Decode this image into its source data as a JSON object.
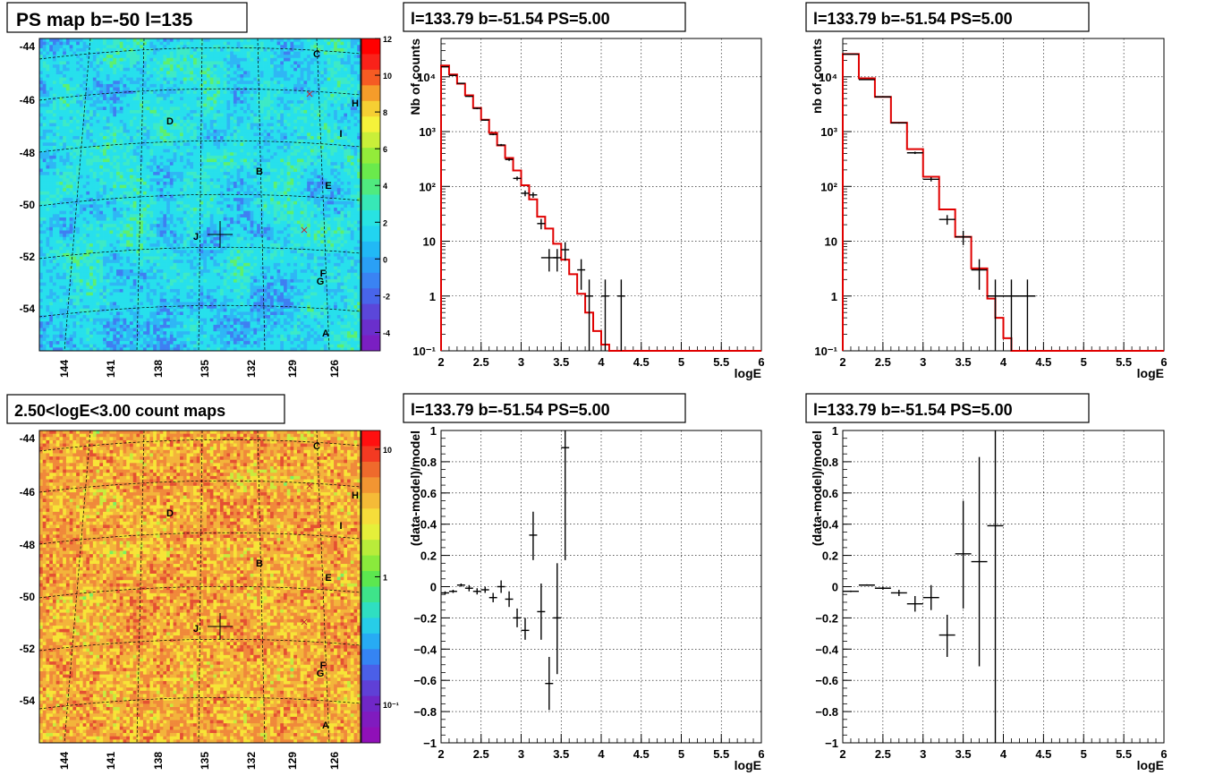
{
  "panels": {
    "map_top": {
      "title": "PS map b=-50 l=135",
      "colorbar": {
        "min": -5,
        "max": 12,
        "ticks": [
          "12",
          "10",
          "8",
          "6",
          "4",
          "2",
          "0",
          "-2",
          "-4"
        ],
        "tick_values": [
          12,
          10,
          8,
          6,
          4,
          2,
          0,
          -2,
          -4
        ],
        "scale": "linear"
      },
      "y_ticks": [
        "-44",
        "-46",
        "-48",
        "-50",
        "-52",
        "-54"
      ],
      "x_ticks": [
        "144",
        "141",
        "138",
        "135",
        "132",
        "129",
        "126"
      ],
      "sources": [
        "C",
        "H",
        "D",
        "I",
        "B",
        "E",
        "J",
        "F",
        "G",
        "A"
      ],
      "palette": "cyan-green"
    },
    "map_bottom": {
      "title": "2.50<logE<3.00 count maps",
      "colorbar": {
        "scale": "log",
        "ticks": [
          "10",
          "1",
          "10⁻¹"
        ],
        "tick_values": [
          10,
          1,
          0.1
        ],
        "min": 0.05,
        "max": 14
      },
      "y_ticks": [
        "-44",
        "-46",
        "-48",
        "-50",
        "-52",
        "-54"
      ],
      "x_ticks": [
        "144",
        "141",
        "138",
        "135",
        "132",
        "129",
        "126"
      ],
      "sources": [
        "C",
        "H",
        "D",
        "I",
        "B",
        "E",
        "J",
        "F",
        "G",
        "A"
      ],
      "palette": "orange-red"
    }
  },
  "chart_data": [
    {
      "id": "spec_left",
      "type": "line",
      "title": "l=133.79 b=-51.54 PS=5.00",
      "xlabel": "logE",
      "ylabel": "Nb of counts",
      "xlim": [
        2,
        6
      ],
      "ylim": [
        0.1,
        50000
      ],
      "yscale": "log",
      "grid": true,
      "x_ticks": [
        "2",
        "2.5",
        "3",
        "3.5",
        "4",
        "4.5",
        "5",
        "5.5",
        "6"
      ],
      "y_ticks": [
        "10⁻¹",
        "1",
        "10",
        "10²",
        "10³",
        "10⁴"
      ],
      "model_color": "#e00000",
      "model_edges": [
        2,
        2.1,
        2.2,
        2.3,
        2.4,
        2.5,
        2.6,
        2.7,
        2.8,
        2.9,
        3.0,
        3.1,
        3.2,
        3.3,
        3.4,
        3.5,
        3.6,
        3.7,
        3.8,
        3.9,
        4.0,
        4.1,
        4.2,
        6.0
      ],
      "model_values": [
        16000,
        11000,
        7500,
        4600,
        2700,
        1650,
        950,
        560,
        330,
        195,
        105,
        58,
        28,
        17,
        9,
        4.6,
        2.5,
        1.1,
        0.5,
        0.23,
        0.13,
        0.1,
        0.1
      ],
      "data": [
        {
          "x": 2.05,
          "y": 15200,
          "dx": 0.05,
          "lo": 15000,
          "hi": 15400
        },
        {
          "x": 2.15,
          "y": 10600,
          "dx": 0.05,
          "lo": 10400,
          "hi": 10800
        },
        {
          "x": 2.25,
          "y": 7600,
          "dx": 0.05,
          "lo": 7450,
          "hi": 7750
        },
        {
          "x": 2.35,
          "y": 4400,
          "dx": 0.05,
          "lo": 4300,
          "hi": 4500
        },
        {
          "x": 2.45,
          "y": 2650,
          "dx": 0.05,
          "lo": 2560,
          "hi": 2740
        },
        {
          "x": 2.55,
          "y": 1620,
          "dx": 0.05,
          "lo": 1580,
          "hi": 1660
        },
        {
          "x": 2.65,
          "y": 890,
          "dx": 0.05,
          "lo": 860,
          "hi": 920
        },
        {
          "x": 2.75,
          "y": 570,
          "dx": 0.05,
          "lo": 546,
          "hi": 594
        },
        {
          "x": 2.85,
          "y": 310,
          "dx": 0.05,
          "lo": 292,
          "hi": 328
        },
        {
          "x": 2.95,
          "y": 140,
          "dx": 0.05,
          "lo": 128,
          "hi": 152
        },
        {
          "x": 3.05,
          "y": 75,
          "dx": 0.05,
          "lo": 66,
          "hi": 84
        },
        {
          "x": 3.15,
          "y": 70,
          "dx": 0.05,
          "lo": 62,
          "hi": 78
        },
        {
          "x": 3.25,
          "y": 21,
          "dx": 0.05,
          "lo": 16.5,
          "hi": 25.5
        },
        {
          "x": 3.35,
          "y": 5,
          "dx": 0.1,
          "lo": 2.8,
          "hi": 7.2
        },
        {
          "x": 3.45,
          "y": 5,
          "dx": 0.05,
          "lo": 2.8,
          "hi": 7.2
        },
        {
          "x": 3.55,
          "y": 7,
          "dx": 0.05,
          "lo": 4.4,
          "hi": 9.6
        },
        {
          "x": 3.75,
          "y": 3,
          "dx": 0.05,
          "lo": 1.3,
          "hi": 4.7
        },
        {
          "x": 3.85,
          "y": 1,
          "dx": 0.05,
          "lo": 0.1,
          "hi": 2
        },
        {
          "x": 4.05,
          "y": 1,
          "dx": 0.05,
          "lo": 0.1,
          "hi": 2
        },
        {
          "x": 4.25,
          "y": 1,
          "dx": 0.05,
          "lo": 0.1,
          "hi": 2
        }
      ]
    },
    {
      "id": "spec_right",
      "type": "line",
      "title": "l=133.79 b=-51.54 PS=5.00",
      "xlabel": "logE",
      "ylabel": "nb of counts",
      "xlim": [
        2,
        6
      ],
      "ylim": [
        0.1,
        50000
      ],
      "yscale": "log",
      "grid": true,
      "x_ticks": [
        "2",
        "2.5",
        "3",
        "3.5",
        "4",
        "4.5",
        "5",
        "5.5",
        "6"
      ],
      "y_ticks": [
        "10⁻¹",
        "1",
        "10",
        "10²",
        "10³",
        "10⁴"
      ],
      "model_color": "#e00000",
      "model_edges": [
        2,
        2.2,
        2.4,
        2.6,
        2.8,
        3.0,
        3.2,
        3.4,
        3.6,
        3.8,
        3.9,
        4.0,
        4.1,
        4.2,
        6.0
      ],
      "model_values": [
        26000,
        9400,
        4300,
        1450,
        480,
        150,
        38,
        12,
        3.2,
        0.9,
        0.4,
        0.17,
        0.1,
        0.1
      ],
      "data": [
        {
          "x": 2.1,
          "y": 25800,
          "dx": 0.1,
          "lo": 25600,
          "hi": 26000
        },
        {
          "x": 2.3,
          "y": 8900,
          "dx": 0.1,
          "lo": 8800,
          "hi": 9000
        },
        {
          "x": 2.5,
          "y": 4300,
          "dx": 0.1,
          "lo": 4230,
          "hi": 4370
        },
        {
          "x": 2.7,
          "y": 1440,
          "dx": 0.1,
          "lo": 1400,
          "hi": 1480
        },
        {
          "x": 2.9,
          "y": 410,
          "dx": 0.1,
          "lo": 390,
          "hi": 430
        },
        {
          "x": 3.1,
          "y": 135,
          "dx": 0.1,
          "lo": 123,
          "hi": 147
        },
        {
          "x": 3.3,
          "y": 25,
          "dx": 0.1,
          "lo": 20,
          "hi": 30
        },
        {
          "x": 3.5,
          "y": 12,
          "dx": 0.1,
          "lo": 8.5,
          "hi": 15.5
        },
        {
          "x": 3.7,
          "y": 3,
          "dx": 0.1,
          "lo": 1.3,
          "hi": 4.7
        },
        {
          "x": 3.9,
          "y": 1,
          "dx": 0.1,
          "lo": 0.1,
          "hi": 2
        },
        {
          "x": 4.1,
          "y": 1,
          "dx": 0.1,
          "lo": 0.1,
          "hi": 2
        },
        {
          "x": 4.3,
          "y": 1,
          "dx": 0.1,
          "lo": 0.1,
          "hi": 2
        }
      ]
    },
    {
      "id": "resid_left",
      "type": "scatter",
      "title": "l=133.79 b=-51.54 PS=5.00",
      "xlabel": "logE",
      "ylabel": "(data-model)/model",
      "xlim": [
        2,
        6
      ],
      "ylim": [
        -1,
        1
      ],
      "grid": true,
      "x_ticks": [
        "2",
        "2.5",
        "3",
        "3.5",
        "4",
        "4.5",
        "5",
        "5.5",
        "6"
      ],
      "y_ticks": [
        "1",
        "0.8",
        "0.6",
        "0.4",
        "0.2",
        "0",
        "−0.2",
        "−0.4",
        "−0.6",
        "−0.8",
        "−1"
      ],
      "y_tick_values": [
        1,
        0.8,
        0.6,
        0.4,
        0.2,
        0,
        -0.2,
        -0.4,
        -0.6,
        -0.8,
        -1
      ],
      "data": [
        {
          "x": 2.05,
          "y": -0.04,
          "dx": 0.05,
          "lo": -0.05,
          "hi": -0.03
        },
        {
          "x": 2.15,
          "y": -0.03,
          "dx": 0.05,
          "lo": -0.04,
          "hi": -0.02
        },
        {
          "x": 2.25,
          "y": 0.01,
          "dx": 0.05,
          "lo": 0.0,
          "hi": 0.02
        },
        {
          "x": 2.35,
          "y": -0.01,
          "dx": 0.05,
          "lo": -0.03,
          "hi": 0.01
        },
        {
          "x": 2.45,
          "y": -0.03,
          "dx": 0.05,
          "lo": -0.05,
          "hi": -0.01
        },
        {
          "x": 2.55,
          "y": -0.02,
          "dx": 0.05,
          "lo": -0.04,
          "hi": 0.0
        },
        {
          "x": 2.65,
          "y": -0.07,
          "dx": 0.05,
          "lo": -0.1,
          "hi": -0.04
        },
        {
          "x": 2.75,
          "y": 0.0,
          "dx": 0.05,
          "lo": -0.04,
          "hi": 0.04
        },
        {
          "x": 2.85,
          "y": -0.08,
          "dx": 0.05,
          "lo": -0.13,
          "hi": -0.03
        },
        {
          "x": 2.95,
          "y": -0.2,
          "dx": 0.05,
          "lo": -0.26,
          "hi": -0.14
        },
        {
          "x": 3.05,
          "y": -0.28,
          "dx": 0.05,
          "lo": -0.34,
          "hi": -0.2
        },
        {
          "x": 3.15,
          "y": 0.33,
          "dx": 0.05,
          "lo": 0.17,
          "hi": 0.48
        },
        {
          "x": 3.25,
          "y": -0.16,
          "dx": 0.05,
          "lo": -0.34,
          "hi": 0.02
        },
        {
          "x": 3.35,
          "y": -0.62,
          "dx": 0.05,
          "lo": -0.79,
          "hi": -0.45
        },
        {
          "x": 3.45,
          "y": -0.2,
          "dx": 0.05,
          "lo": -0.56,
          "hi": 0.15
        },
        {
          "x": 3.55,
          "y": 0.89,
          "dx": 0.05,
          "lo": 0.17,
          "hi": 1.0
        }
      ]
    },
    {
      "id": "resid_right",
      "type": "scatter",
      "title": "l=133.79 b=-51.54 PS=5.00",
      "xlabel": "logE",
      "ylabel": "(data-model)/model",
      "xlim": [
        2,
        6
      ],
      "ylim": [
        -1,
        1
      ],
      "grid": true,
      "x_ticks": [
        "2",
        "2.5",
        "3",
        "3.5",
        "4",
        "4.5",
        "5",
        "5.5",
        "6"
      ],
      "y_ticks": [
        "1",
        "0.8",
        "0.6",
        "0.4",
        "0.2",
        "0",
        "−0.2",
        "−0.4",
        "−0.6",
        "−0.8",
        "−1"
      ],
      "y_tick_values": [
        1,
        0.8,
        0.6,
        0.4,
        0.2,
        0,
        -0.2,
        -0.4,
        -0.6,
        -0.8,
        -1
      ],
      "data": [
        {
          "x": 2.1,
          "y": -0.03,
          "dx": 0.1,
          "lo": -0.035,
          "hi": -0.025
        },
        {
          "x": 2.3,
          "y": 0.01,
          "dx": 0.1,
          "lo": 0.005,
          "hi": 0.015
        },
        {
          "x": 2.5,
          "y": -0.01,
          "dx": 0.1,
          "lo": -0.02,
          "hi": 0.0
        },
        {
          "x": 2.7,
          "y": -0.04,
          "dx": 0.1,
          "lo": -0.06,
          "hi": -0.02
        },
        {
          "x": 2.9,
          "y": -0.11,
          "dx": 0.1,
          "lo": -0.16,
          "hi": -0.06
        },
        {
          "x": 3.1,
          "y": -0.07,
          "dx": 0.1,
          "lo": -0.15,
          "hi": 0.01
        },
        {
          "x": 3.3,
          "y": -0.31,
          "dx": 0.1,
          "lo": -0.45,
          "hi": -0.18
        },
        {
          "x": 3.5,
          "y": 0.21,
          "dx": 0.1,
          "lo": -0.14,
          "hi": 0.55
        },
        {
          "x": 3.7,
          "y": 0.16,
          "dx": 0.1,
          "lo": -0.51,
          "hi": 0.83
        },
        {
          "x": 3.9,
          "y": 0.39,
          "dx": 0.1,
          "lo": -1.0,
          "hi": 1.0
        }
      ]
    }
  ]
}
